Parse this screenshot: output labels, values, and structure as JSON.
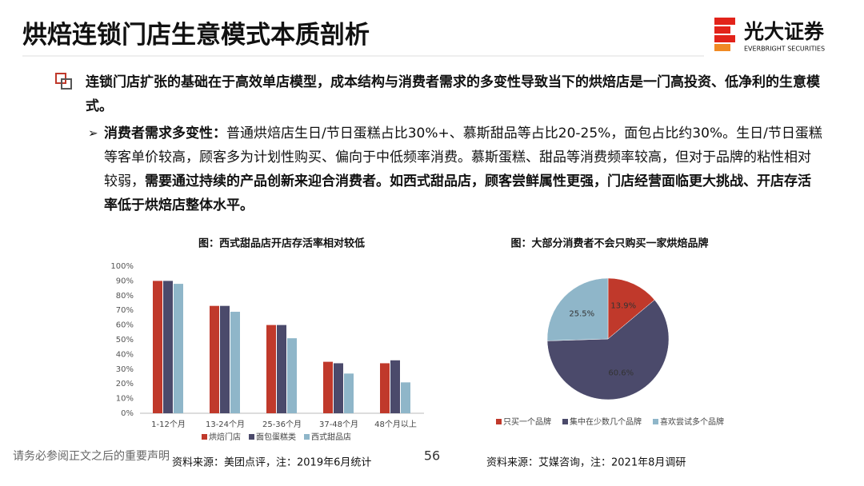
{
  "header": {
    "title": "烘焙连锁门店生意模式本质剖析",
    "logo_name": "光大证券",
    "logo_sub": "EVERBRIGHT SECURITIES"
  },
  "bullet": {
    "text": "连锁门店扩张的基础在于高效单店模型，成本结构与消费者需求的多变性导致当下的烘焙店是一门高投资、低净利的生意模式。"
  },
  "sub_bullet": {
    "label": "消费者需求多变性：",
    "text": "普通烘焙店生日/节日蛋糕占比30%+、慕斯甜品等占比20-25%，面包占比约30%。生日/节日蛋糕等客单价较高，顾客多为计划性购买、偏向于中低频率消费。慕斯蛋糕、甜品等消费频率较高，但对于品牌的粘性相对较弱，",
    "emphasis": "需要通过持续的产品创新来迎合消费者。如西式甜品店，顾客尝鲜属性更强，门店经营面临更大挑战、开店存活率低于烘焙店整体水平。"
  },
  "chart_data": [
    {
      "type": "bar",
      "title": "图：西式甜品店开店存活率相对较低",
      "categories": [
        "1-12个月",
        "13-24个月",
        "25-36个月",
        "37-48个月",
        "48个月以上"
      ],
      "series": [
        {
          "name": "烘焙门店",
          "color": "#c0392b",
          "values": [
            90,
            73,
            60,
            35,
            34
          ]
        },
        {
          "name": "面包蛋糕类",
          "color": "#4b4a6b",
          "values": [
            90,
            73,
            60,
            34,
            36
          ]
        },
        {
          "name": "西式甜品店",
          "color": "#8fb6c9",
          "values": [
            88,
            69,
            51,
            27,
            21
          ]
        }
      ],
      "ylim": [
        0,
        100
      ],
      "yticks": [
        {
          "value": 0,
          "label": "0%"
        },
        {
          "value": 10,
          "label": "10%"
        },
        {
          "value": 20,
          "label": "20%"
        },
        {
          "value": 30,
          "label": "30%"
        },
        {
          "value": 40,
          "label": "40%"
        },
        {
          "value": 50,
          "label": "50%"
        },
        {
          "value": 60,
          "label": "60%"
        },
        {
          "value": 70,
          "label": "70%"
        },
        {
          "value": 80,
          "label": "80%"
        },
        {
          "value": 90,
          "label": "90%"
        },
        {
          "value": 100,
          "label": "100%"
        }
      ],
      "grid": false,
      "source": "资料来源：美团点评，注：2019年6月统计"
    },
    {
      "type": "pie",
      "title": "图：大部分消费者不会只购买一家烘焙品牌",
      "categories": [
        "只买一个品牌",
        "集中在少数几个品牌",
        "喜欢尝试多个品牌"
      ],
      "values": [
        13.9,
        60.6,
        25.5
      ],
      "value_labels": [
        "13.9%",
        "60.6%",
        "25.5%"
      ],
      "colors": [
        "#c0392b",
        "#4b4a6b",
        "#8fb6c9"
      ],
      "source": "资料来源：艾媒咨询，注：2021年8月调研"
    }
  ],
  "footer": {
    "disclaimer": "请务必参阅正文之后的重要声明",
    "page": "56"
  }
}
